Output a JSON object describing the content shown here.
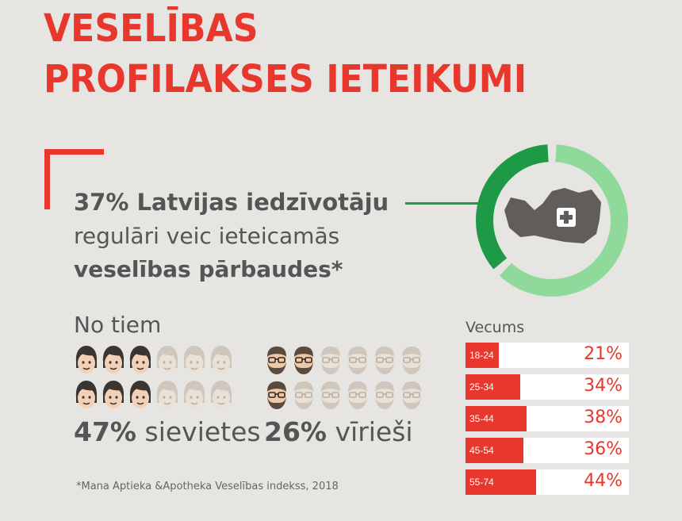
{
  "title": {
    "line1": "VESELĪBAS",
    "line2": "PROFILAKSES IETEIKUMI"
  },
  "headline": {
    "stat": "37% Latvijas iedzīvotāju",
    "line2": "regulāri veic ieteicamās",
    "line3": "veselības pārbaudes*"
  },
  "donut": {
    "percent": 37,
    "colors": {
      "filled": "#1e9a47",
      "rest": "#8fd99b",
      "map": "#605d5a"
    }
  },
  "breakdown": {
    "heading": "No tiem",
    "women": {
      "percent": "47%",
      "label": "sievietes",
      "highlighted": 3,
      "total": 6,
      "rows": 2
    },
    "men": {
      "percent": "26%",
      "label": "vīrieši",
      "highlighted_row1": 2,
      "highlighted_row2": 1,
      "total": 6
    }
  },
  "chart_data": {
    "type": "bar",
    "title": "Vecums",
    "categories": [
      "18-24",
      "25-34",
      "35-44",
      "45-54",
      "55-74"
    ],
    "values": [
      21,
      34,
      38,
      36,
      44
    ],
    "value_labels": [
      "21%",
      "34%",
      "38%",
      "36%",
      "44%"
    ],
    "xlim": [
      0,
      100
    ]
  },
  "footnote": "*Mana Aptieka &Apotheka Veselības indekss, 2018",
  "colors": {
    "accent": "#e8372c",
    "green": "#1e9a47",
    "text": "#555555"
  }
}
